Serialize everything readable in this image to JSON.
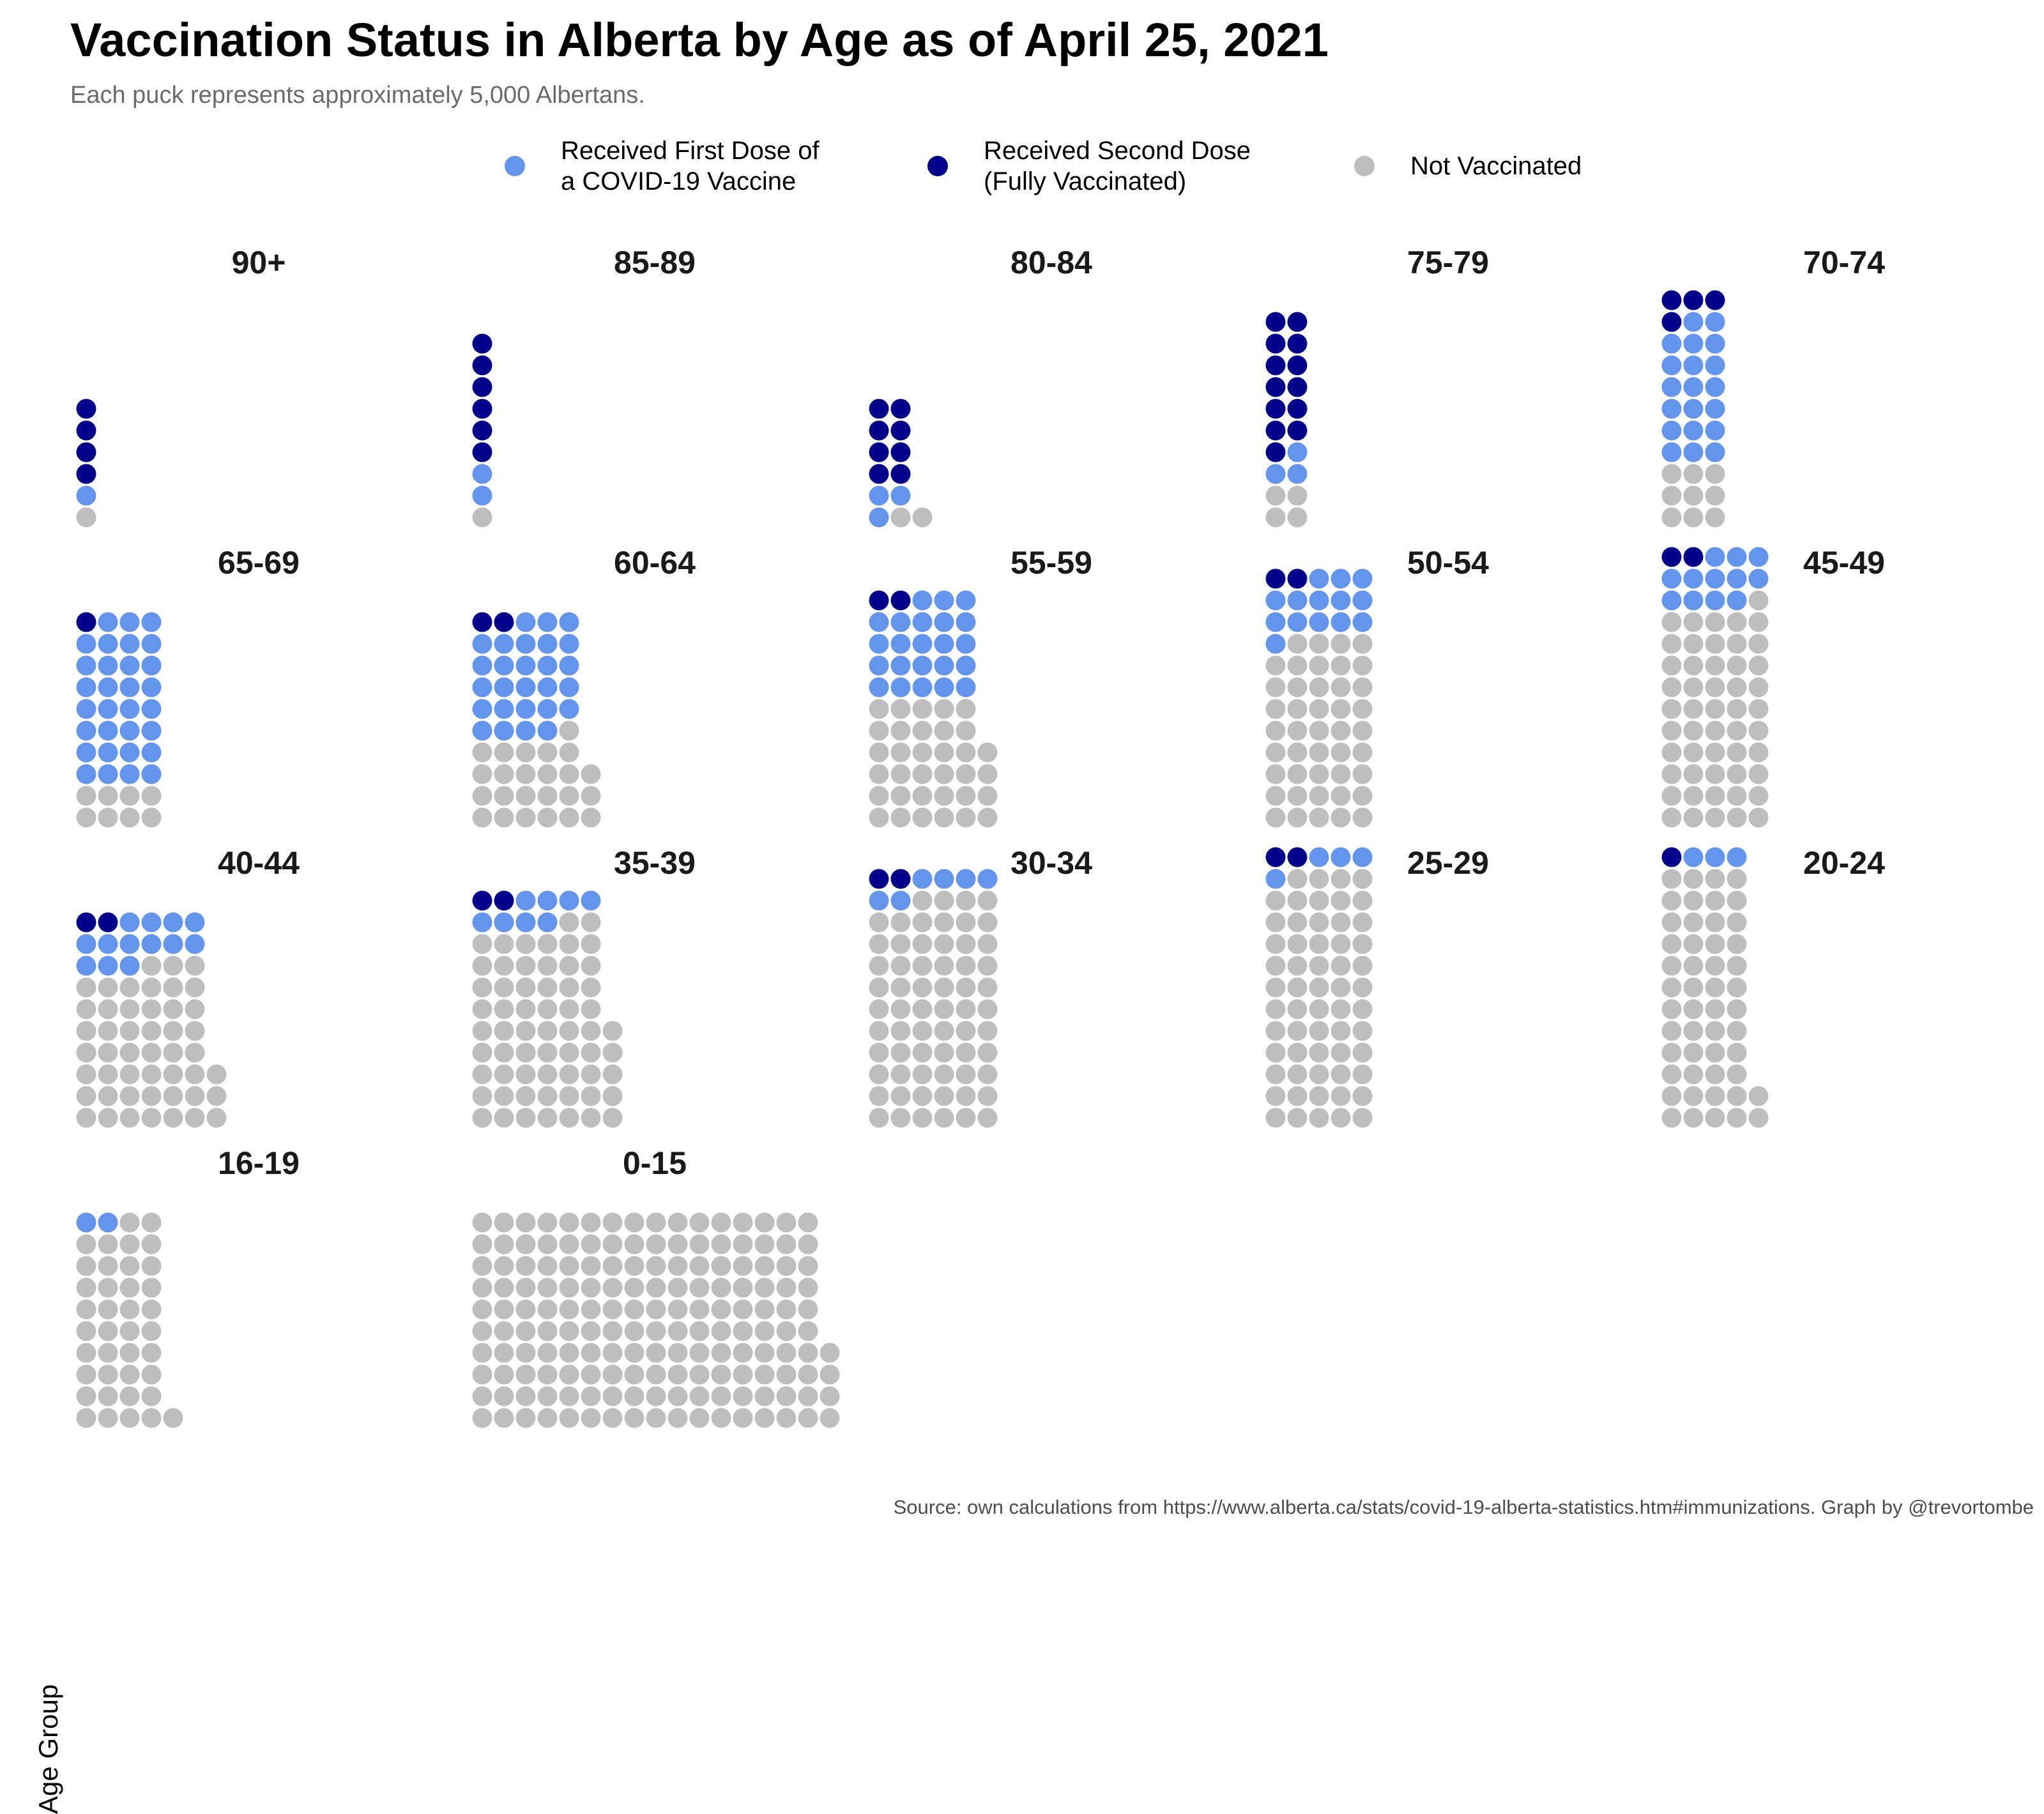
{
  "title": "Vaccination Status in Alberta by Age as of April 25, 2021",
  "subtitle": "Each puck represents approximately 5,000 Albertans.",
  "source": "Source: own calculations from https://www.alberta.ca/stats/covid-19-alberta-statistics.htm#immunizations. Graph by @trevortombe",
  "legend": {
    "first": "Received First Dose of\na COVID-19 Vaccine",
    "second": "Received Second Dose\n(Fully Vaccinated)",
    "none": "Not Vaccinated"
  },
  "colors": {
    "first_dose": "#6495ED",
    "second_dose": "#00008B",
    "not_vaccinated": "#BEBEBE"
  },
  "chart_data": {
    "type": "waffle",
    "unit": "Each puck represents approximately 5,000 Albertans.",
    "ylabel": "Age Group",
    "series": [
      {
        "name": "Received Second Dose (Fully Vaccinated)",
        "key": "second_dose"
      },
      {
        "name": "Received First Dose of a COVID-19 Vaccine",
        "key": "first_dose"
      },
      {
        "name": "Not Vaccinated",
        "key": "not_vaccinated"
      }
    ],
    "panels": [
      {
        "label": "90+",
        "cols": 1,
        "second_dose": 4,
        "first_dose": 1,
        "not_vaccinated": 1
      },
      {
        "label": "85-89",
        "cols": 1,
        "second_dose": 6,
        "first_dose": 2,
        "not_vaccinated": 1
      },
      {
        "label": "80-84",
        "cols": 2,
        "second_dose": 8,
        "first_dose": 3,
        "not_vaccinated": 2
      },
      {
        "label": "75-79",
        "cols": 2,
        "second_dose": 13,
        "first_dose": 3,
        "not_vaccinated": 4
      },
      {
        "label": "70-74",
        "cols": 3,
        "second_dose": 4,
        "first_dose": 20,
        "not_vaccinated": 9
      },
      {
        "label": "65-69",
        "cols": 4,
        "second_dose": 1,
        "first_dose": 31,
        "not_vaccinated": 8
      },
      {
        "label": "60-64",
        "cols": 5,
        "second_dose": 2,
        "first_dose": 27,
        "not_vaccinated": 24
      },
      {
        "label": "55-59",
        "cols": 5,
        "second_dose": 2,
        "first_dose": 23,
        "not_vaccinated": 34
      },
      {
        "label": "50-54",
        "cols": 5,
        "second_dose": 2,
        "first_dose": 14,
        "not_vaccinated": 44
      },
      {
        "label": "45-49",
        "cols": 5,
        "second_dose": 2,
        "first_dose": 12,
        "not_vaccinated": 51
      },
      {
        "label": "40-44",
        "cols": 6,
        "second_dose": 2,
        "first_dose": 13,
        "not_vaccinated": 48
      },
      {
        "label": "35-39",
        "cols": 6,
        "second_dose": 2,
        "first_dose": 8,
        "not_vaccinated": 61
      },
      {
        "label": "30-34",
        "cols": 6,
        "second_dose": 2,
        "first_dose": 6,
        "not_vaccinated": 64
      },
      {
        "label": "25-29",
        "cols": 5,
        "second_dose": 2,
        "first_dose": 4,
        "not_vaccinated": 59
      },
      {
        "label": "20-24",
        "cols": 4,
        "second_dose": 1,
        "first_dose": 3,
        "not_vaccinated": 50
      },
      {
        "label": "16-19",
        "cols": 4,
        "second_dose": 0,
        "first_dose": 2,
        "not_vaccinated": 39
      },
      {
        "label": "0-15",
        "cols": 16,
        "second_dose": 0,
        "first_dose": 0,
        "not_vaccinated": 164
      }
    ]
  }
}
